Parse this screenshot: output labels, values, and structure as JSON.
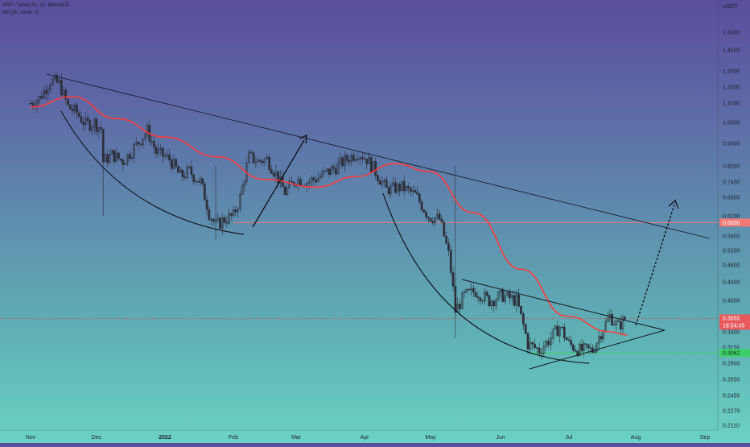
{
  "legend": {
    "symbol_line": "XRP / TetherUS, 1D, BINANCE",
    "ma_line": "MA (50, close, 0)"
  },
  "price_axis": {
    "unit": "USDT",
    "labels": [
      "1.6000",
      "1.4500",
      "1.3000",
      "1.2000",
      "1.1000",
      "1.0000",
      "0.9000",
      "0.8000",
      "0.7400",
      "0.6800",
      "0.6200",
      "0.5600",
      "0.5200",
      "0.4800",
      "0.4400",
      "0.4000",
      "0.3400",
      "0.3150",
      "0.2900",
      "0.2650",
      "0.2450",
      "0.2270",
      "0.2110"
    ]
  },
  "time_axis": {
    "labels": [
      "Nov",
      "Dec",
      "2022",
      "Feb",
      "Mar",
      "Apr",
      "May",
      "Jun",
      "Jul",
      "Aug",
      "Sep"
    ]
  },
  "tags": {
    "last_price": "0.3655",
    "countdown": "18:54:45",
    "support_level": "0.6000",
    "green_level": "0.3062"
  },
  "colors": {
    "candle": "#2d2f3a",
    "ma": "#ff3b3b",
    "trendline": "#151823",
    "arrow": "#0d1018",
    "resistance_line": "#f07a78",
    "green_line": "#3fcf6a",
    "last_price_tag": "#e85a5e",
    "last_price_dotted": "#d94b54"
  },
  "chart_data": {
    "type": "candlestick",
    "symbol": "XRP / TetherUS",
    "interval": "1D",
    "exchange": "BINANCE",
    "scale": "log",
    "y_range": [
      0.2,
      1.7
    ],
    "x_range": [
      "2021-11-01",
      "2022-09-01"
    ],
    "price_series": [
      {
        "date": "2021-11-01",
        "close": 1.1
      },
      {
        "date": "2021-11-05",
        "close": 1.13
      },
      {
        "date": "2021-11-10",
        "close": 1.24
      },
      {
        "date": "2021-11-14",
        "close": 1.22
      },
      {
        "date": "2021-11-18",
        "close": 1.08
      },
      {
        "date": "2021-11-22",
        "close": 1.05
      },
      {
        "date": "2021-11-26",
        "close": 0.99
      },
      {
        "date": "2021-11-30",
        "close": 1.0
      },
      {
        "date": "2021-12-03",
        "close": 0.97
      },
      {
        "date": "2021-12-04",
        "close": 0.82
      },
      {
        "date": "2021-12-08",
        "close": 0.85
      },
      {
        "date": "2021-12-13",
        "close": 0.82
      },
      {
        "date": "2021-12-18",
        "close": 0.88
      },
      {
        "date": "2021-12-24",
        "close": 0.96
      },
      {
        "date": "2021-12-28",
        "close": 0.86
      },
      {
        "date": "2022-01-03",
        "close": 0.83
      },
      {
        "date": "2022-01-08",
        "close": 0.76
      },
      {
        "date": "2022-01-12",
        "close": 0.78
      },
      {
        "date": "2022-01-17",
        "close": 0.74
      },
      {
        "date": "2022-01-21",
        "close": 0.63
      },
      {
        "date": "2022-01-24",
        "close": 0.59
      },
      {
        "date": "2022-01-28",
        "close": 0.61
      },
      {
        "date": "2022-02-01",
        "close": 0.62
      },
      {
        "date": "2022-02-04",
        "close": 0.68
      },
      {
        "date": "2022-02-08",
        "close": 0.84
      },
      {
        "date": "2022-02-12",
        "close": 0.82
      },
      {
        "date": "2022-02-16",
        "close": 0.83
      },
      {
        "date": "2022-02-20",
        "close": 0.77
      },
      {
        "date": "2022-02-24",
        "close": 0.7
      },
      {
        "date": "2022-03-01",
        "close": 0.75
      },
      {
        "date": "2022-03-06",
        "close": 0.74
      },
      {
        "date": "2022-03-12",
        "close": 0.76
      },
      {
        "date": "2022-03-18",
        "close": 0.79
      },
      {
        "date": "2022-03-24",
        "close": 0.83
      },
      {
        "date": "2022-03-29",
        "close": 0.86
      },
      {
        "date": "2022-04-02",
        "close": 0.83
      },
      {
        "date": "2022-04-06",
        "close": 0.78
      },
      {
        "date": "2022-04-11",
        "close": 0.71
      },
      {
        "date": "2022-04-18",
        "close": 0.72
      },
      {
        "date": "2022-04-24",
        "close": 0.69
      },
      {
        "date": "2022-04-30",
        "close": 0.62
      },
      {
        "date": "2022-05-05",
        "close": 0.61
      },
      {
        "date": "2022-05-09",
        "close": 0.51
      },
      {
        "date": "2022-05-12",
        "close": 0.38
      },
      {
        "date": "2022-05-16",
        "close": 0.41
      },
      {
        "date": "2022-05-21",
        "close": 0.42
      },
      {
        "date": "2022-05-27",
        "close": 0.4
      },
      {
        "date": "2022-06-02",
        "close": 0.41
      },
      {
        "date": "2022-06-08",
        "close": 0.4
      },
      {
        "date": "2022-06-13",
        "close": 0.32
      },
      {
        "date": "2022-06-18",
        "close": 0.31
      },
      {
        "date": "2022-06-23",
        "close": 0.33
      },
      {
        "date": "2022-06-27",
        "close": 0.35
      },
      {
        "date": "2022-07-01",
        "close": 0.32
      },
      {
        "date": "2022-07-06",
        "close": 0.31
      },
      {
        "date": "2022-07-12",
        "close": 0.31
      },
      {
        "date": "2022-07-16",
        "close": 0.34
      },
      {
        "date": "2022-07-20",
        "close": 0.37
      },
      {
        "date": "2022-07-24",
        "close": 0.35
      },
      {
        "date": "2022-07-28",
        "close": 0.37
      }
    ],
    "moving_average": {
      "period": 50,
      "source": "close",
      "points": [
        {
          "date": "2021-11-01",
          "value": 1.08
        },
        {
          "date": "2021-11-20",
          "value": 1.14
        },
        {
          "date": "2021-12-10",
          "value": 1.02
        },
        {
          "date": "2022-01-01",
          "value": 0.93
        },
        {
          "date": "2022-01-25",
          "value": 0.84
        },
        {
          "date": "2022-02-15",
          "value": 0.75
        },
        {
          "date": "2022-03-10",
          "value": 0.72
        },
        {
          "date": "2022-03-28",
          "value": 0.76
        },
        {
          "date": "2022-04-15",
          "value": 0.81
        },
        {
          "date": "2022-04-30",
          "value": 0.78
        },
        {
          "date": "2022-05-20",
          "value": 0.63
        },
        {
          "date": "2022-06-10",
          "value": 0.47
        },
        {
          "date": "2022-06-30",
          "value": 0.37
        },
        {
          "date": "2022-07-20",
          "value": 0.34
        },
        {
          "date": "2022-07-28",
          "value": 0.335
        }
      ]
    },
    "horizontal_levels": [
      {
        "price": 0.6,
        "color": "#f07a78"
      },
      {
        "price": 0.3062,
        "color": "#3fcf6a"
      }
    ],
    "last_price": 0.3655
  }
}
